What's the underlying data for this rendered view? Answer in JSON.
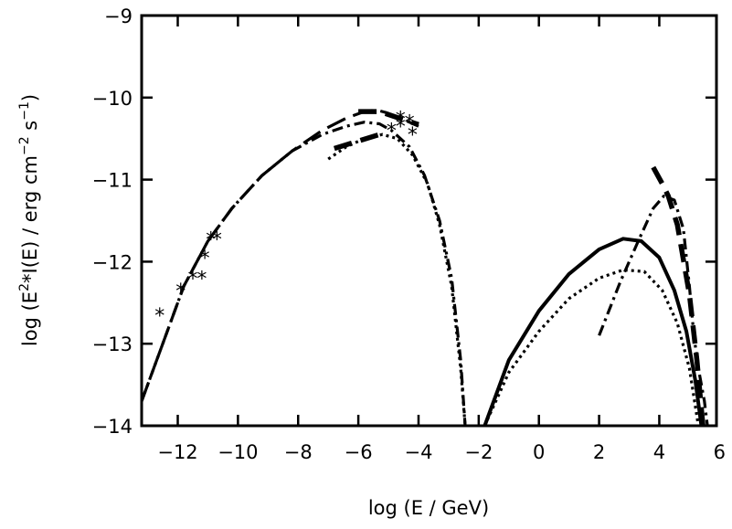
{
  "chart_data": {
    "type": "line",
    "xlim": [
      -13.2,
      5.9
    ],
    "ylim": [
      -14,
      -9
    ],
    "x_ticks": [
      -12,
      -10,
      -8,
      -6,
      -4,
      -2,
      0,
      2,
      4,
      6
    ],
    "x_tick_labels": [
      "−12",
      "−10",
      "−8",
      "−6",
      "−4",
      "−2",
      "0",
      "2",
      "4",
      "6"
    ],
    "y_ticks": [
      -14,
      -13,
      -12,
      -11,
      -10,
      -9
    ],
    "y_tick_labels": [
      "−14",
      "−13",
      "−12",
      "−11",
      "−10",
      "−9"
    ],
    "xlabel": "log (E / GeV)",
    "ylabel": {
      "part1": "log (E",
      "sup1": "2",
      "part2": "*I(E)  /  erg cm",
      "sup2": "−2",
      "part3": " s",
      "sup3": "−1",
      "part4": ")"
    },
    "grid": false,
    "series": [
      {
        "style": "long-dash",
        "x": [
          -13.2,
          -12.5,
          -11.8,
          -11.0,
          -10.2,
          -9.2,
          -8.2,
          -7.2,
          -6.4,
          -5.8,
          -5.4,
          -5.1,
          -4.6,
          -4.0
        ],
        "y": [
          -13.7,
          -13.0,
          -12.3,
          -11.75,
          -11.35,
          -10.95,
          -10.65,
          -10.4,
          -10.25,
          -10.17,
          -10.15,
          -10.18,
          -10.25,
          -10.35
        ]
      },
      {
        "style": "dash-dot",
        "x": [
          -13.2,
          -12.5,
          -11.8,
          -11.0,
          -10.2,
          -9.2,
          -8.2,
          -7.2,
          -6.4,
          -5.8,
          -5.3,
          -4.9,
          -4.3,
          -3.8,
          -3.3,
          -2.9,
          -2.6,
          -2.45
        ],
        "y": [
          -13.7,
          -13.0,
          -12.3,
          -11.75,
          -11.35,
          -10.95,
          -10.65,
          -10.45,
          -10.35,
          -10.3,
          -10.32,
          -10.4,
          -10.6,
          -10.95,
          -11.5,
          -12.2,
          -13.2,
          -14.0
        ]
      },
      {
        "style": "dotted",
        "x": [
          -7.0,
          -6.4,
          -5.8,
          -5.2,
          -4.7,
          -4.2,
          -3.7,
          -3.3,
          -2.9,
          -2.6,
          -2.45
        ],
        "y": [
          -10.75,
          -10.6,
          -10.5,
          -10.45,
          -10.5,
          -10.7,
          -11.05,
          -11.55,
          -12.3,
          -13.3,
          -14.0
        ]
      },
      {
        "style": "solid",
        "x": [
          -1.8,
          -1.0,
          0.0,
          1.0,
          2.0,
          2.8,
          3.4,
          4.0,
          4.5,
          4.9,
          5.2,
          5.4
        ],
        "y": [
          -14.0,
          -13.2,
          -12.6,
          -12.15,
          -11.85,
          -11.72,
          -11.75,
          -11.95,
          -12.35,
          -12.85,
          -13.45,
          -14.0
        ]
      },
      {
        "style": "dotted",
        "x": [
          -1.8,
          -1.0,
          0.0,
          1.0,
          2.0,
          2.8,
          3.5,
          4.1,
          4.6,
          5.0,
          5.3
        ],
        "y": [
          -14.0,
          -13.35,
          -12.85,
          -12.45,
          -12.2,
          -12.1,
          -12.12,
          -12.35,
          -12.75,
          -13.3,
          -14.0
        ]
      },
      {
        "style": "dash-dot",
        "x": [
          2.0,
          2.7,
          3.3,
          3.8,
          4.15,
          4.5,
          4.8,
          5.0,
          5.15,
          5.3,
          5.5,
          5.6
        ],
        "y": [
          -12.9,
          -12.25,
          -11.75,
          -11.35,
          -11.2,
          -11.25,
          -11.6,
          -12.3,
          -12.9,
          -13.3,
          -13.7,
          -14.0
        ]
      },
      {
        "style": "long-dash-thick",
        "x": [
          3.8,
          4.1,
          4.3,
          4.6,
          5.0,
          5.25,
          5.45
        ],
        "y": [
          -10.85,
          -11.05,
          -11.2,
          -11.55,
          -12.4,
          -13.2,
          -14.0
        ]
      },
      {
        "style": "long-dash-thick",
        "x": [
          -6.8,
          -5.3
        ],
        "y": [
          -10.62,
          -10.45
        ]
      },
      {
        "style": "long-dash-thick",
        "x": [
          -6.0,
          -5.3,
          -4.0
        ],
        "y": [
          -10.17,
          -10.17,
          -10.33
        ]
      }
    ],
    "markers": {
      "symbol": "*",
      "x": [
        -12.6,
        -11.9,
        -11.5,
        -11.2,
        -11.1,
        -10.9,
        -10.7,
        -4.9,
        -4.6,
        -4.3,
        -4.2,
        -4.6
      ],
      "y": [
        -12.65,
        -12.35,
        -12.2,
        -12.2,
        -11.95,
        -11.72,
        -11.72,
        -10.4,
        -10.35,
        -10.3,
        -10.45,
        -10.25
      ]
    }
  }
}
